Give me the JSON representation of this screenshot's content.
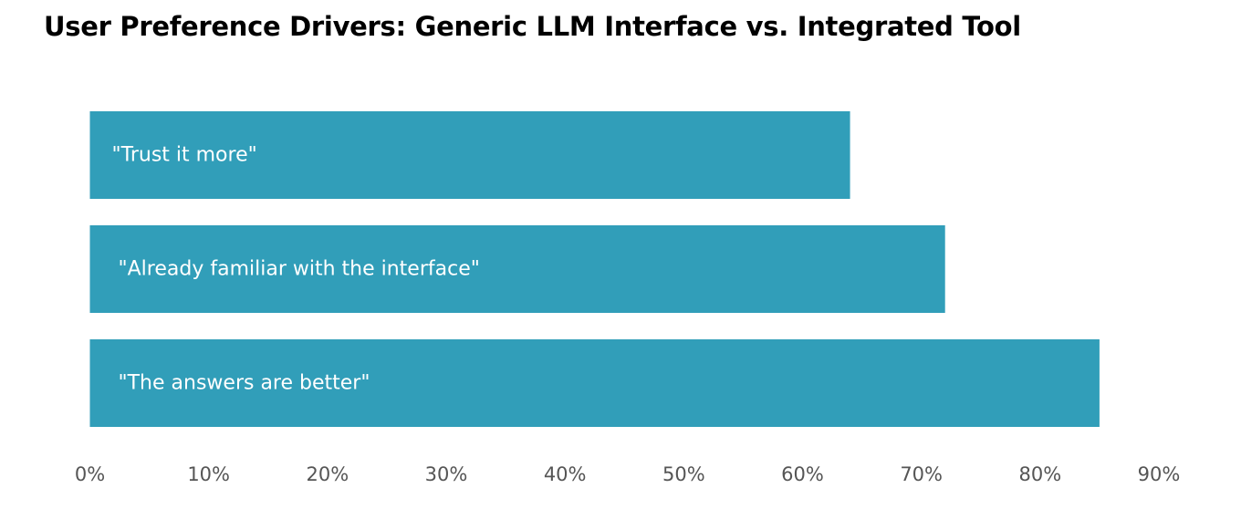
{
  "chart_data": {
    "type": "bar",
    "orientation": "horizontal",
    "title": "User Preference Drivers: Generic LLM Interface vs. Integrated Tool",
    "categories": [
      "\"Trust it more\"",
      "\"Already familiar with the interface\"",
      "\"The answers are better\""
    ],
    "values": [
      64,
      72,
      85
    ],
    "xlim": [
      0,
      90
    ],
    "x_ticks": [
      "0%",
      "10%",
      "20%",
      "30%",
      "40%",
      "50%",
      "60%",
      "70%",
      "80%",
      "90%"
    ],
    "grid": false,
    "bar_color": "#319eb9",
    "label_color": "#ffffff"
  }
}
